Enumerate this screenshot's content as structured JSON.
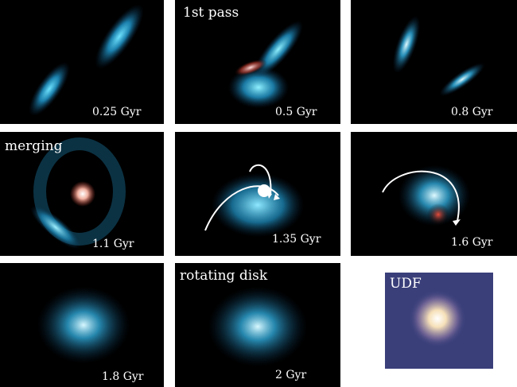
{
  "figure": {
    "panels": [
      {
        "id": "p1",
        "time": "0.25 Gyr",
        "stage": ""
      },
      {
        "id": "p2",
        "time": "0.5 Gyr",
        "stage": "1st pass"
      },
      {
        "id": "p3",
        "time": "0.8 Gyr",
        "stage": ""
      },
      {
        "id": "p4",
        "time": "1.1 Gyr",
        "stage": "merging"
      },
      {
        "id": "p5",
        "time": "1.35 Gyr",
        "stage": ""
      },
      {
        "id": "p6",
        "time": "1.6 Gyr",
        "stage": ""
      },
      {
        "id": "p7",
        "time": "1.8 Gyr",
        "stage": ""
      },
      {
        "id": "p8",
        "time": "2 Gyr",
        "stage": "rotating disk"
      }
    ],
    "udf": {
      "label": "UDF"
    }
  },
  "colors": {
    "panel_bg": "#000000",
    "gas": "#2fa8d8",
    "star_red": "#c0392b",
    "star_green": "#27ae60",
    "udf_bg": "#3a3f7a",
    "text": "#ffffff"
  }
}
